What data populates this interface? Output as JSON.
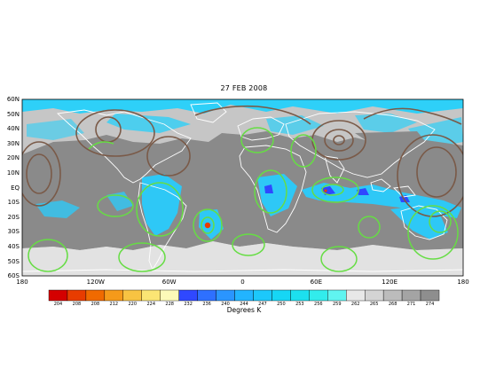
{
  "title": "27 FEB 2008",
  "lat_labels": [
    "60N",
    "50N",
    "40N",
    "30N",
    "20N",
    "10N",
    "EQ",
    "10S",
    "20S",
    "30S",
    "40S",
    "50S",
    "60S"
  ],
  "lon_labels": [
    "180",
    "120W",
    "60W",
    "0",
    "60E",
    "120E",
    "180"
  ],
  "colorbar": {
    "unit_label": "Degrees K",
    "values": [
      "204",
      "208",
      "208",
      "212",
      "220",
      "224",
      "228",
      "232",
      "236",
      "240",
      "244",
      "247",
      "250",
      "253",
      "256",
      "259",
      "262",
      "265",
      "268",
      "271",
      "274"
    ],
    "colors": [
      "#d40000",
      "#e83c00",
      "#f06a00",
      "#f59a1a",
      "#f8c342",
      "#fbe574",
      "#fcfab8",
      "#2f48ff",
      "#2e70ff",
      "#2a95ff",
      "#22b4ff",
      "#1cc8fb",
      "#16d6f5",
      "#1ce0ef",
      "#32ecec",
      "#60f4f0",
      "#e8e8e8",
      "#d4d4d4",
      "#bcbcbc",
      "#a4a4a4",
      "#8e8e8e"
    ]
  },
  "colors": {
    "ocean_gray": "#8c8c8c",
    "coast_white": "#ffffff",
    "contour_brown": "#7a5a48",
    "contour_green": "#66dd44",
    "cloud_cyan": "#22c8f5"
  }
}
